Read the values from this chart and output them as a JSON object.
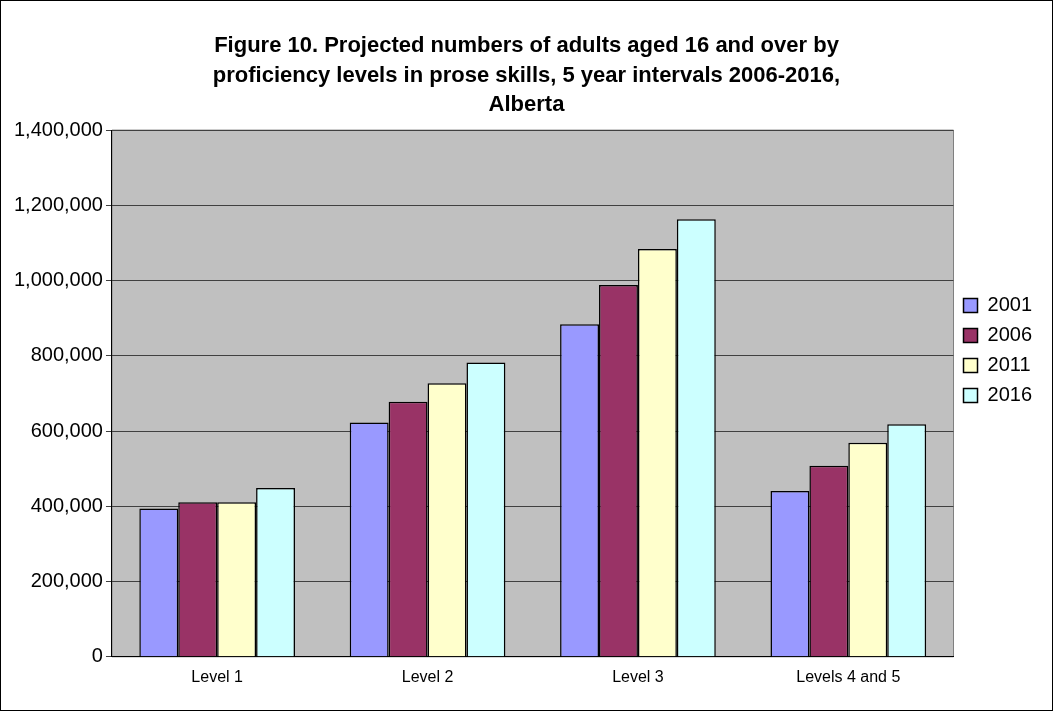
{
  "chart_data": {
    "type": "bar",
    "title": "Figure 10. Projected numbers of adults aged 16 and over by proficiency levels in prose skills, 5 year intervals 2006-2016, Alberta",
    "categories": [
      "Level 1",
      "Level 2",
      "Level 3",
      "Levels 4 and 5"
    ],
    "series": [
      {
        "name": "2001",
        "color": "#9999ff",
        "values": [
          394000,
          623000,
          884000,
          441000
        ]
      },
      {
        "name": "2006",
        "color": "#993366",
        "values": [
          411000,
          678000,
          988000,
          508000
        ]
      },
      {
        "name": "2011",
        "color": "#ffffcc",
        "values": [
          411000,
          727000,
          1084000,
          569000
        ]
      },
      {
        "name": "2016",
        "color": "#ccffff",
        "values": [
          449000,
          782000,
          1163000,
          618000
        ]
      }
    ],
    "ylim": [
      0,
      1400000
    ],
    "yticks": [
      0,
      {
        "value": 200000,
        "label": "200,000"
      },
      {
        "value": 400000,
        "label": "400,000"
      },
      {
        "value": 600000,
        "label": "600,000"
      },
      {
        "value": 800000,
        "label": "800,000"
      },
      {
        "value": 1000000,
        "label": "1,000,000"
      },
      {
        "value": 1200000,
        "label": "1,200,000"
      },
      {
        "value": 1400000,
        "label": "1,400,000"
      }
    ],
    "grid": "y",
    "legend": "right"
  }
}
